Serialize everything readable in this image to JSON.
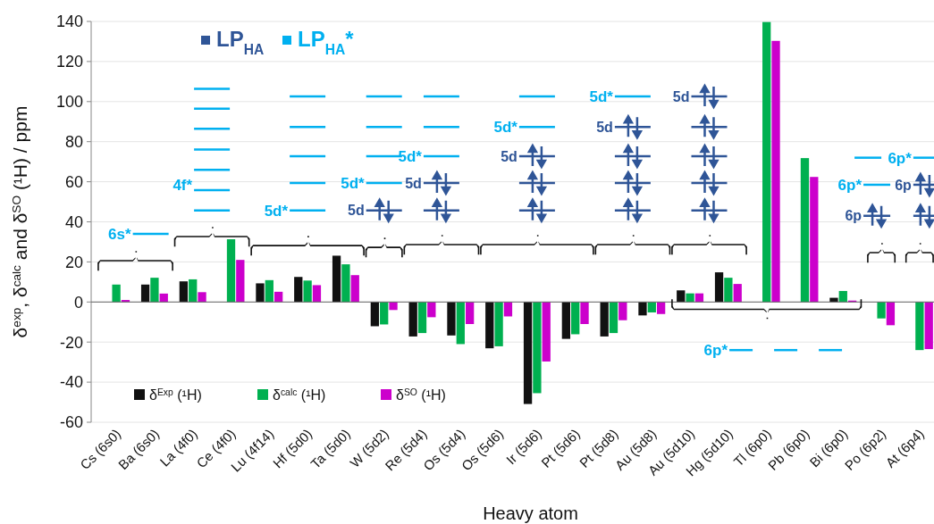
{
  "chart_data": {
    "type": "bar",
    "xlabel": "Heavy atom",
    "ylabel": "δ$^{exp}$, δ$^{calc}$ and δ$^{SO}$ (¹H) / ppm",
    "categories": [
      "Cs (6s0)",
      "Ba (6s0)",
      "La (4f0)",
      "Ce (4f0)",
      "Lu (4f14)",
      "Hf (5d0)",
      "Ta (5d0)",
      "W (5d2)",
      "Re (5d4)",
      "Os (5d4)",
      "Os (5d6)",
      "Ir (5d6)",
      "Pt (5d6)",
      "Pt (5d8)",
      "Au (5d8)",
      "Au (5d10)",
      "Hg (5d10)",
      "Tl (6p0)",
      "Pb (6p0)",
      "Bi (6p0)",
      "Po (6p2)",
      "At (6p4)"
    ],
    "series": [
      {
        "name": "δ$^{Exp}$ (¹H)",
        "color": "#111111",
        "values": [
          null,
          8.7,
          10.3,
          null,
          9.3,
          12.5,
          23.1,
          -12.1,
          -17.2,
          -16.7,
          -23.1,
          -50.9,
          -18.4,
          -17.2,
          -6.7,
          5.8,
          14.8,
          null,
          null,
          2.1,
          null,
          null
        ]
      },
      {
        "name": "δ$^{calc}$ (¹H)",
        "color": "#00b050",
        "values": [
          8.7,
          12.1,
          11.3,
          31.3,
          10.9,
          10.7,
          18.8,
          -11.2,
          -15.5,
          -21.0,
          -22.1,
          -45.5,
          -16.1,
          -15.5,
          -5.2,
          4.3,
          12.1,
          139.7,
          71.8,
          5.5,
          -8.2,
          -24.0
        ]
      },
      {
        "name": "δ$^{SO}$ (¹H)",
        "color": "#cc00cc",
        "values": [
          1.0,
          4.2,
          4.9,
          21.0,
          5.1,
          8.4,
          13.4,
          -4.0,
          -7.6,
          -11.0,
          -7.2,
          -29.7,
          -11.0,
          -9.1,
          -6.0,
          4.3,
          9.0,
          130.3,
          62.4,
          0.7,
          -11.6,
          -23.5
        ]
      }
    ],
    "ylim": [
      -60,
      140
    ],
    "yticks": [
      -60,
      -40,
      -20,
      0,
      20,
      40,
      60,
      80,
      100,
      120,
      140
    ],
    "grid": "y",
    "legend": "bottom left",
    "annotations": [
      "LP$_{HA}$",
      "LP$_{HA}$*",
      "6s*",
      "4f*",
      "5d*",
      "5d*",
      "5d",
      "5d*",
      "5d",
      "5d*",
      "5d",
      "5d*",
      "5d",
      "5d",
      "6p*",
      "6p*",
      "6p",
      "6p*",
      "6p"
    ]
  }
}
